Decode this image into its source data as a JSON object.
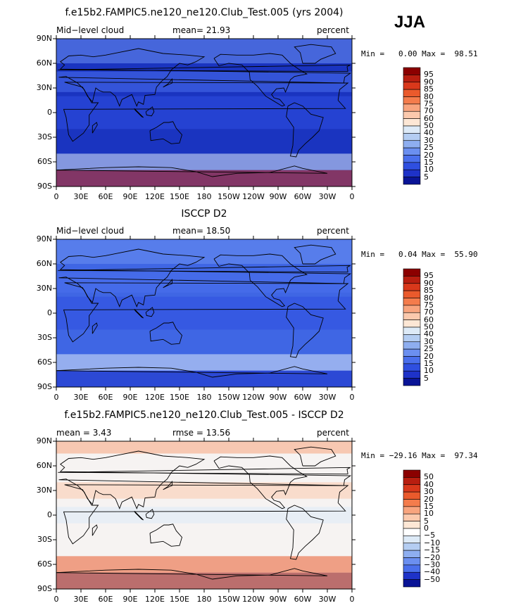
{
  "season": "JJA",
  "panels": [
    {
      "id": "model",
      "title": "f.e15b2.FAMPIC5.ne120_ne120.Club_Test.005 (yrs 2004)",
      "left_label": "Mid−level cloud",
      "center_label": "mean=  21.93",
      "right_label": "percent",
      "stats": "Min =   0.00 Max =  98.51",
      "colorbar": {
        "labels": [
          "95",
          "90",
          "85",
          "80",
          "75",
          "70",
          "60",
          "50",
          "40",
          "30",
          "25",
          "20",
          "15",
          "10",
          "5"
        ],
        "colors": [
          "#8b0000",
          "#b81e10",
          "#d9381b",
          "#ea5a2c",
          "#f47c4c",
          "#f8a47e",
          "#fbc9ad",
          "#fde7d5",
          "#ddeaf7",
          "#b4cdf2",
          "#8eaef0",
          "#6b8ff0",
          "#4a6fec",
          "#2f4fe0",
          "#1e32c8",
          "#0a1496"
        ]
      },
      "fill": "#1a34c0"
    },
    {
      "id": "obs",
      "title": "ISCCP D2",
      "left_label": "Mid−level cloud",
      "center_label": "mean=  18.50",
      "right_label": "percent",
      "stats": "Min =   0.04 Max =  55.90",
      "colorbar": {
        "labels": [
          "95",
          "90",
          "85",
          "80",
          "75",
          "70",
          "60",
          "50",
          "40",
          "30",
          "25",
          "20",
          "15",
          "10",
          "5"
        ],
        "colors": [
          "#8b0000",
          "#b81e10",
          "#d9381b",
          "#ea5a2c",
          "#f47c4c",
          "#f8a47e",
          "#fbc9ad",
          "#fde7d5",
          "#ddeaf7",
          "#b4cdf2",
          "#8eaef0",
          "#6b8ff0",
          "#4a6fec",
          "#2f4fe0",
          "#1e32c8",
          "#0a1496"
        ]
      },
      "fill": "#3f66e4"
    },
    {
      "id": "diff",
      "title": "f.e15b2.FAMPIC5.ne120_ne120.Club_Test.005 - ISCCP D2",
      "left_label": "mean =    3.43",
      "center_label": "rmse =   13.56",
      "right_label": "percent",
      "stats": "Min = −29.16 Max =  97.34",
      "colorbar": {
        "labels": [
          "50",
          "40",
          "30",
          "20",
          "15",
          "10",
          "5",
          "0",
          "−5",
          "−10",
          "−15",
          "−20",
          "−30",
          "−40",
          "−50"
        ],
        "colors": [
          "#8b0000",
          "#b81e10",
          "#d9381b",
          "#ea5a2c",
          "#f47c4c",
          "#f8a47e",
          "#fbc9ad",
          "#fde7d5",
          "#ffffff",
          "#ddeaf7",
          "#b4cdf2",
          "#8eaef0",
          "#6b8ff0",
          "#4a6fec",
          "#1e32c8",
          "#0a1496"
        ]
      },
      "fill": "#f6f3f2"
    }
  ],
  "lat_ticks": [
    "90N",
    "60N",
    "30N",
    "0",
    "30S",
    "60S",
    "90S"
  ],
  "lon_ticks": [
    "0",
    "30E",
    "60E",
    "90E",
    "120E",
    "150E",
    "180",
    "150W",
    "120W",
    "90W",
    "60W",
    "30W",
    "0"
  ]
}
